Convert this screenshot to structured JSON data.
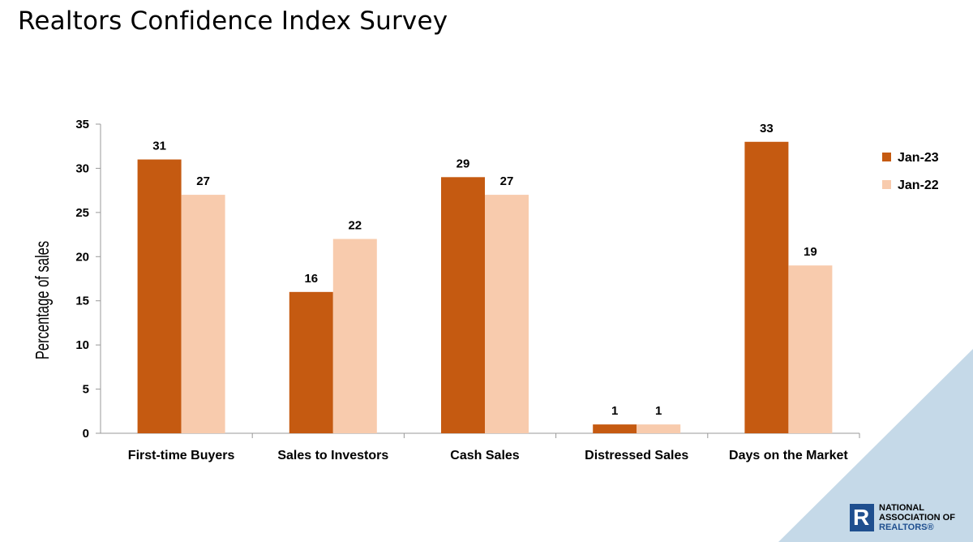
{
  "slide": {
    "title": "Realtors Confidence Index Survey"
  },
  "colors": {
    "jan23": "#c55a11",
    "jan22": "#f8cbad",
    "axis": "#999999",
    "corner": "#c5d9e8",
    "brand_blue": "#1f4f8f"
  },
  "logo": {
    "line1": "NATIONAL",
    "line2": "ASSOCIATION OF",
    "line3": "REALTORS®",
    "mark_icon": "realtor-r-icon"
  },
  "chart_data": {
    "type": "bar",
    "title": "",
    "ylabel": "Percentage of  sales",
    "xlabel": "",
    "ylim": [
      0,
      35
    ],
    "yticks": [
      0,
      5,
      10,
      15,
      20,
      25,
      30,
      35
    ],
    "categories": [
      "First-time Buyers",
      "Sales to Investors",
      "Cash Sales",
      "Distressed Sales",
      "Days on the Market"
    ],
    "series": [
      {
        "name": "Jan-23",
        "values": [
          31,
          16,
          29,
          1,
          33
        ]
      },
      {
        "name": "Jan-22",
        "values": [
          27,
          22,
          27,
          1,
          19
        ]
      }
    ],
    "legend": "right",
    "grid": false
  }
}
